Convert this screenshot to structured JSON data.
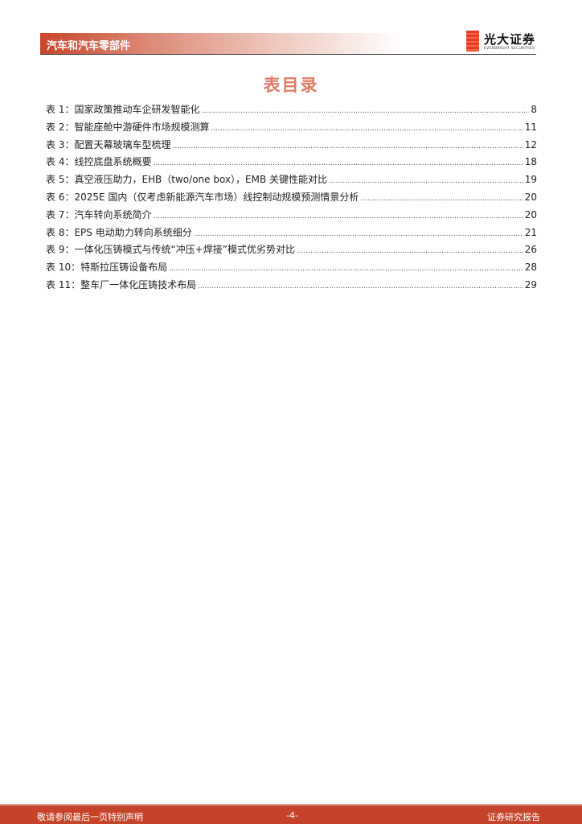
{
  "header": {
    "section": "汽车和汽车零部件",
    "logo_cn": "光大证券",
    "logo_en": "EVERBRIGHT SECURITIES"
  },
  "title": "表目录",
  "toc": [
    {
      "label": "表 1：国家政策推动车企研发智能化",
      "page": "8"
    },
    {
      "label": "表 2：智能座舱中游硬件市场规模测算",
      "page": "11"
    },
    {
      "label": "表 3：配置天幕玻璃车型梳理",
      "page": "12"
    },
    {
      "label": "表 4：线控底盘系统概要",
      "page": "18"
    },
    {
      "label": "表 5：真空液压助力，EHB（two/one box），EMB 关键性能对比",
      "page": "19"
    },
    {
      "label": "表 6：2025E 国内（仅考虑新能源汽车市场）线控制动规模预测情景分析",
      "page": "20"
    },
    {
      "label": "表 7：汽车转向系统简介",
      "page": "20"
    },
    {
      "label": "表 8：EPS 电动助力转向系统细分",
      "page": "21"
    },
    {
      "label": "表 9：一体化压铸模式与传统“冲压+焊接”模式优劣势对比",
      "page": "26"
    },
    {
      "label": "表 10：特斯拉压铸设备布局",
      "page": "28"
    },
    {
      "label": "表 11：整车厂一体化压铸技术布局",
      "page": "29"
    }
  ],
  "footer": {
    "left": "敬请参阅最后一页特别声明",
    "center": "-4-",
    "right": "证券研究报告"
  },
  "colors": {
    "accent": "#c4432a",
    "title": "#e07b65"
  }
}
